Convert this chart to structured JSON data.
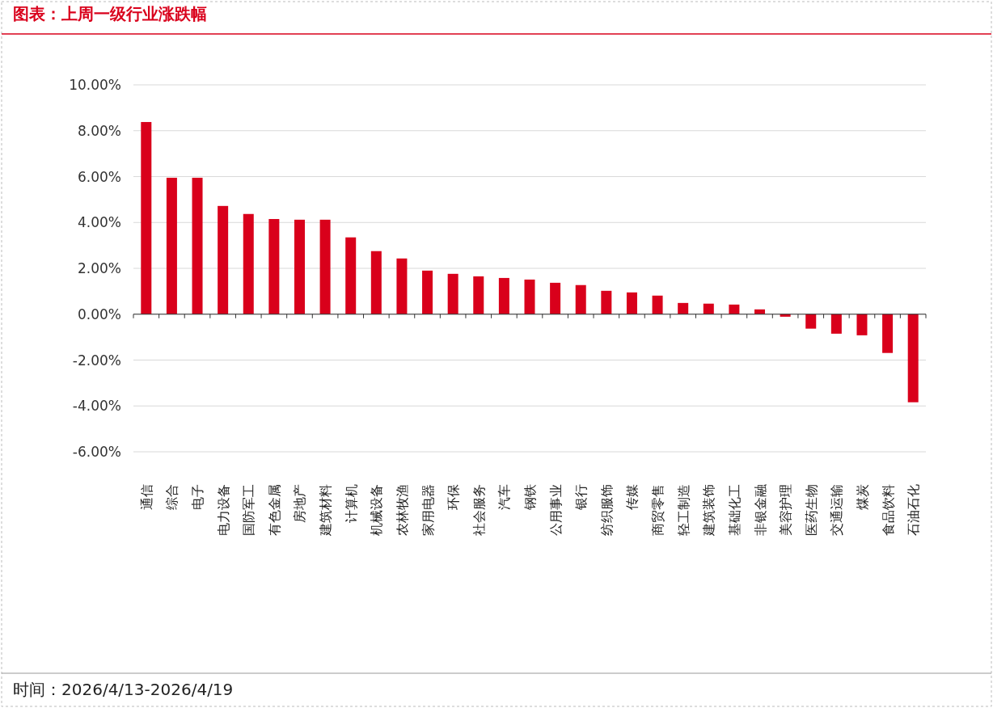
{
  "chart_data": {
    "type": "bar",
    "title": "图表：上周一级行业涨跌幅",
    "categories": [
      "通信",
      "综合",
      "电子",
      "电力设备",
      "国防军工",
      "有色金属",
      "房地产",
      "建筑材料",
      "计算机",
      "机械设备",
      "农林牧渔",
      "家用电器",
      "环保",
      "社会服务",
      "汽车",
      "钢铁",
      "公用事业",
      "银行",
      "纺织服饰",
      "传媒",
      "商贸零售",
      "轻工制造",
      "建筑装饰",
      "基础化工",
      "非银金融",
      "美容护理",
      "医药生物",
      "交通运输",
      "煤炭",
      "食品饮料",
      "石油石化"
    ],
    "values": [
      8.38,
      5.95,
      5.95,
      4.72,
      4.37,
      4.15,
      4.12,
      4.12,
      3.35,
      2.75,
      2.43,
      1.9,
      1.76,
      1.65,
      1.58,
      1.51,
      1.37,
      1.27,
      1.02,
      0.95,
      0.81,
      0.49,
      0.46,
      0.42,
      0.21,
      -0.11,
      -0.63,
      -0.85,
      -0.92,
      -1.69,
      -3.84
    ],
    "color": "#d9001b",
    "ylim": [
      -6,
      10
    ],
    "yticks": [
      {
        "value": -6,
        "label": "-6.00%"
      },
      {
        "value": -4,
        "label": "-4.00%"
      },
      {
        "value": -2,
        "label": "-2.00%"
      },
      {
        "value": 0,
        "label": "0.00%"
      },
      {
        "value": 2,
        "label": "2.00%"
      },
      {
        "value": 4,
        "label": "4.00%"
      },
      {
        "value": 6,
        "label": "6.00%"
      },
      {
        "value": 8,
        "label": "8.00%"
      },
      {
        "value": 10,
        "label": "10.00%"
      }
    ],
    "grid": "y",
    "annotations": [
      "时间：2026/4/13-2026/4/19"
    ]
  }
}
